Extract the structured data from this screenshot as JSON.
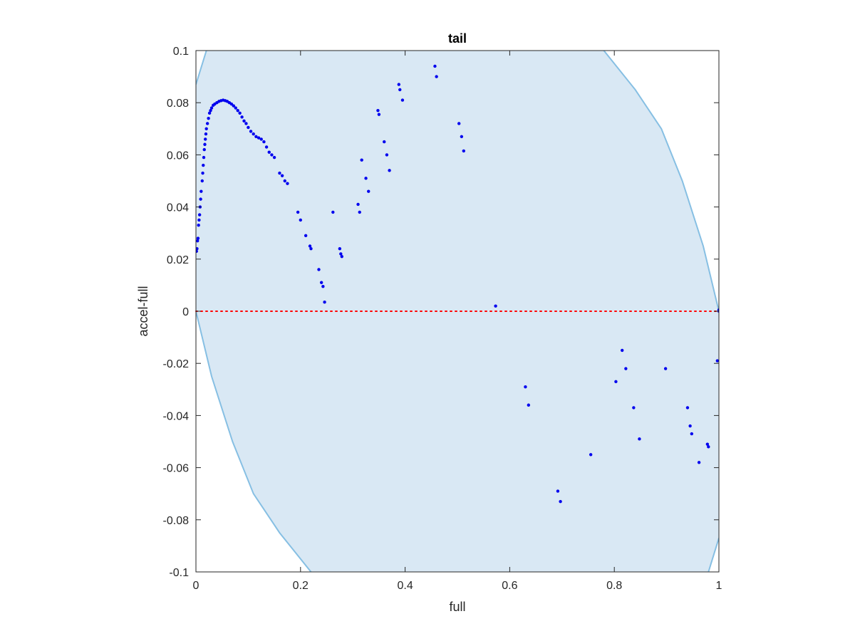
{
  "chart_data": {
    "type": "scatter",
    "title": "tail",
    "xlabel": "full",
    "ylabel": "accel-full",
    "xlim": [
      0,
      1
    ],
    "ylim": [
      -0.1,
      0.1
    ],
    "xticks": [
      0,
      0.2,
      0.4,
      0.6,
      0.8,
      1
    ],
    "xtick_labels": [
      "0",
      "0.2",
      "0.4",
      "0.6",
      "0.8",
      "1"
    ],
    "yticks": [
      -0.1,
      -0.08,
      -0.06,
      -0.04,
      -0.02,
      0,
      0.02,
      0.04,
      0.06,
      0.08,
      0.1
    ],
    "ytick_labels": [
      "-0.1",
      "-0.08",
      "-0.06",
      "-0.04",
      "-0.02",
      "0",
      "0.02",
      "0.04",
      "0.06",
      "0.08",
      "0.1"
    ],
    "grid": false,
    "legend": "none",
    "colors": {
      "points": "#0000ee",
      "region_fill": "#d9e8f4",
      "region_edge": "#86bfe3",
      "zero_line": "#ff0000",
      "axes": "#262626"
    },
    "reference_line": {
      "y": 0,
      "style": "dotted"
    },
    "region": {
      "left_boundary": [
        [
          0.22,
          -0.1
        ],
        [
          0.16,
          -0.085
        ],
        [
          0.11,
          -0.07
        ],
        [
          0.07,
          -0.05
        ],
        [
          0.03,
          -0.025
        ],
        [
          0.0,
          0.0
        ]
      ],
      "left_upper_boundary": [
        [
          0.0,
          0.087
        ],
        [
          0.02,
          0.1
        ]
      ],
      "right_boundary": [
        [
          0.78,
          0.1
        ],
        [
          0.84,
          0.085
        ],
        [
          0.89,
          0.07
        ],
        [
          0.93,
          0.05
        ],
        [
          0.97,
          0.025
        ],
        [
          1.0,
          0.0
        ]
      ],
      "right_lower_boundary": [
        [
          1.0,
          -0.087
        ],
        [
          0.98,
          -0.1
        ]
      ]
    },
    "series": [
      {
        "values": [
          [
            0.001,
            0.023
          ],
          [
            0.002,
            0.024
          ],
          [
            0.003,
            0.027
          ],
          [
            0.004,
            0.028
          ],
          [
            0.005,
            0.033
          ],
          [
            0.006,
            0.035
          ],
          [
            0.007,
            0.037
          ],
          [
            0.008,
            0.04
          ],
          [
            0.009,
            0.043
          ],
          [
            0.01,
            0.046
          ],
          [
            0.012,
            0.05
          ],
          [
            0.013,
            0.053
          ],
          [
            0.014,
            0.056
          ],
          [
            0.015,
            0.059
          ],
          [
            0.016,
            0.062
          ],
          [
            0.017,
            0.064
          ],
          [
            0.018,
            0.066
          ],
          [
            0.019,
            0.068
          ],
          [
            0.02,
            0.07
          ],
          [
            0.022,
            0.072
          ],
          [
            0.024,
            0.074
          ],
          [
            0.026,
            0.076
          ],
          [
            0.028,
            0.077
          ],
          [
            0.03,
            0.078
          ],
          [
            0.033,
            0.079
          ],
          [
            0.036,
            0.0795
          ],
          [
            0.04,
            0.08
          ],
          [
            0.044,
            0.0805
          ],
          [
            0.048,
            0.0808
          ],
          [
            0.052,
            0.081
          ],
          [
            0.056,
            0.0808
          ],
          [
            0.06,
            0.0805
          ],
          [
            0.064,
            0.08
          ],
          [
            0.068,
            0.0795
          ],
          [
            0.072,
            0.0788
          ],
          [
            0.076,
            0.078
          ],
          [
            0.08,
            0.077
          ],
          [
            0.084,
            0.076
          ],
          [
            0.088,
            0.0745
          ],
          [
            0.092,
            0.073
          ],
          [
            0.096,
            0.072
          ],
          [
            0.1,
            0.0705
          ],
          [
            0.105,
            0.069
          ],
          [
            0.11,
            0.068
          ],
          [
            0.115,
            0.067
          ],
          [
            0.12,
            0.0665
          ],
          [
            0.125,
            0.066
          ],
          [
            0.13,
            0.065
          ],
          [
            0.135,
            0.063
          ],
          [
            0.14,
            0.061
          ],
          [
            0.145,
            0.06
          ],
          [
            0.15,
            0.059
          ],
          [
            0.16,
            0.053
          ],
          [
            0.165,
            0.052
          ],
          [
            0.17,
            0.05
          ],
          [
            0.175,
            0.049
          ],
          [
            0.195,
            0.038
          ],
          [
            0.2,
            0.035
          ],
          [
            0.21,
            0.029
          ],
          [
            0.218,
            0.025
          ],
          [
            0.22,
            0.024
          ],
          [
            0.235,
            0.016
          ],
          [
            0.24,
            0.011
          ],
          [
            0.243,
            0.0095
          ],
          [
            0.246,
            0.0035
          ],
          [
            0.262,
            0.038
          ],
          [
            0.275,
            0.024
          ],
          [
            0.277,
            0.022
          ],
          [
            0.279,
            0.021
          ],
          [
            0.31,
            0.041
          ],
          [
            0.313,
            0.038
          ],
          [
            0.317,
            0.058
          ],
          [
            0.325,
            0.051
          ],
          [
            0.33,
            0.046
          ],
          [
            0.348,
            0.077
          ],
          [
            0.35,
            0.0755
          ],
          [
            0.36,
            0.065
          ],
          [
            0.365,
            0.06
          ],
          [
            0.37,
            0.054
          ],
          [
            0.388,
            0.087
          ],
          [
            0.39,
            0.085
          ],
          [
            0.395,
            0.081
          ],
          [
            0.457,
            0.094
          ],
          [
            0.46,
            0.09
          ],
          [
            0.503,
            0.072
          ],
          [
            0.508,
            0.067
          ],
          [
            0.512,
            0.0615
          ],
          [
            0.573,
            0.002
          ],
          [
            0.63,
            -0.029
          ],
          [
            0.636,
            -0.036
          ],
          [
            0.692,
            -0.069
          ],
          [
            0.697,
            -0.073
          ],
          [
            0.755,
            -0.055
          ],
          [
            0.803,
            -0.027
          ],
          [
            0.815,
            -0.015
          ],
          [
            0.822,
            -0.022
          ],
          [
            0.837,
            -0.037
          ],
          [
            0.848,
            -0.049
          ],
          [
            0.898,
            -0.022
          ],
          [
            0.94,
            -0.037
          ],
          [
            0.945,
            -0.044
          ],
          [
            0.948,
            -0.047
          ],
          [
            0.962,
            -0.058
          ],
          [
            0.978,
            -0.051
          ],
          [
            0.98,
            -0.052
          ],
          [
            0.997,
            -0.019
          ],
          [
            1.0,
            0.0005
          ],
          [
            1.0,
            0.0
          ]
        ]
      }
    ]
  }
}
